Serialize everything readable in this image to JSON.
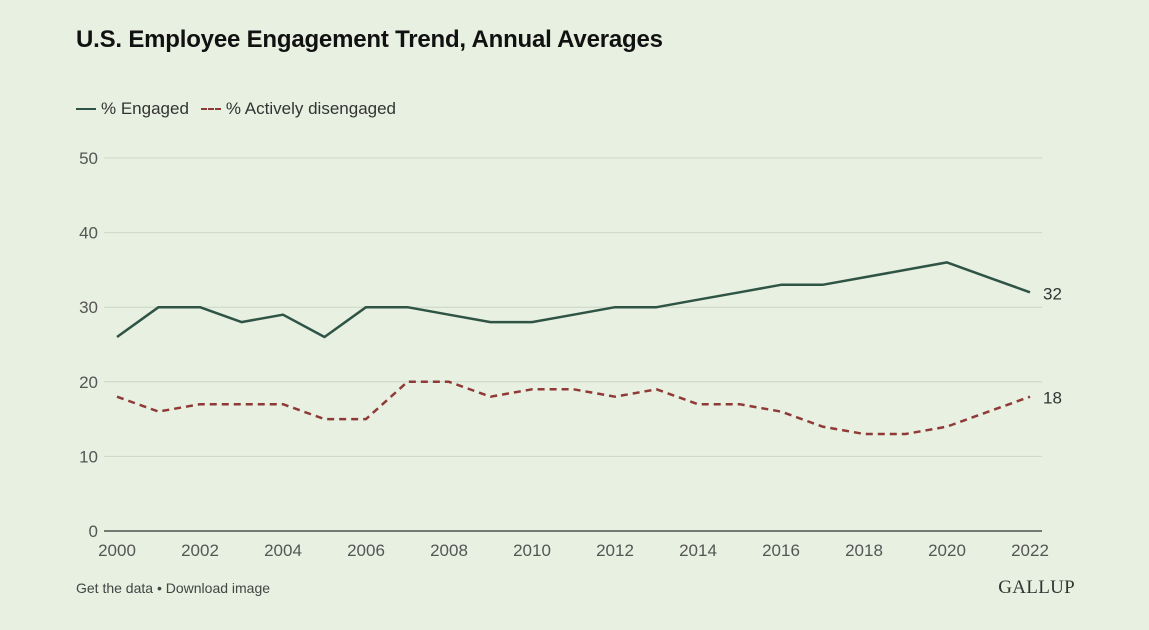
{
  "chart_data": {
    "type": "line",
    "title": "U.S. Employee Engagement Trend, Annual Averages",
    "x": [
      2000,
      2001,
      2002,
      2003,
      2004,
      2005,
      2006,
      2007,
      2008,
      2009,
      2010,
      2011,
      2012,
      2013,
      2014,
      2015,
      2016,
      2017,
      2018,
      2019,
      2020,
      2021,
      2022
    ],
    "series": [
      {
        "name": "% Engaged",
        "style": "solid",
        "color": "#2f5446",
        "values": [
          26,
          30,
          30,
          28,
          29,
          26,
          30,
          30,
          29,
          28,
          28,
          29,
          30,
          30,
          31,
          32,
          33,
          33,
          34,
          35,
          36,
          34,
          32
        ],
        "end_label": "32"
      },
      {
        "name": "% Actively disengaged",
        "style": "dashed",
        "color": "#8f3a36",
        "values": [
          18,
          16,
          17,
          17,
          17,
          15,
          15,
          20,
          20,
          18,
          19,
          19,
          18,
          19,
          17,
          17,
          16,
          14,
          13,
          13,
          14,
          16,
          18
        ],
        "end_label": "18"
      }
    ],
    "xticks": [
      2000,
      2002,
      2004,
      2006,
      2008,
      2010,
      2012,
      2014,
      2016,
      2018,
      2020,
      2022
    ],
    "yticks": [
      0,
      10,
      20,
      30,
      40,
      50
    ],
    "xlim": [
      2000,
      2022
    ],
    "ylim": [
      0,
      50
    ],
    "grid": true,
    "legend_position": "top-left"
  },
  "footer": {
    "get_data": "Get the data",
    "separator": " • ",
    "download": "Download image"
  },
  "brand": "GALLUP",
  "colors": {
    "background": "#e7f0e1",
    "grid": "#ccd6c6",
    "axis": "#333333"
  }
}
